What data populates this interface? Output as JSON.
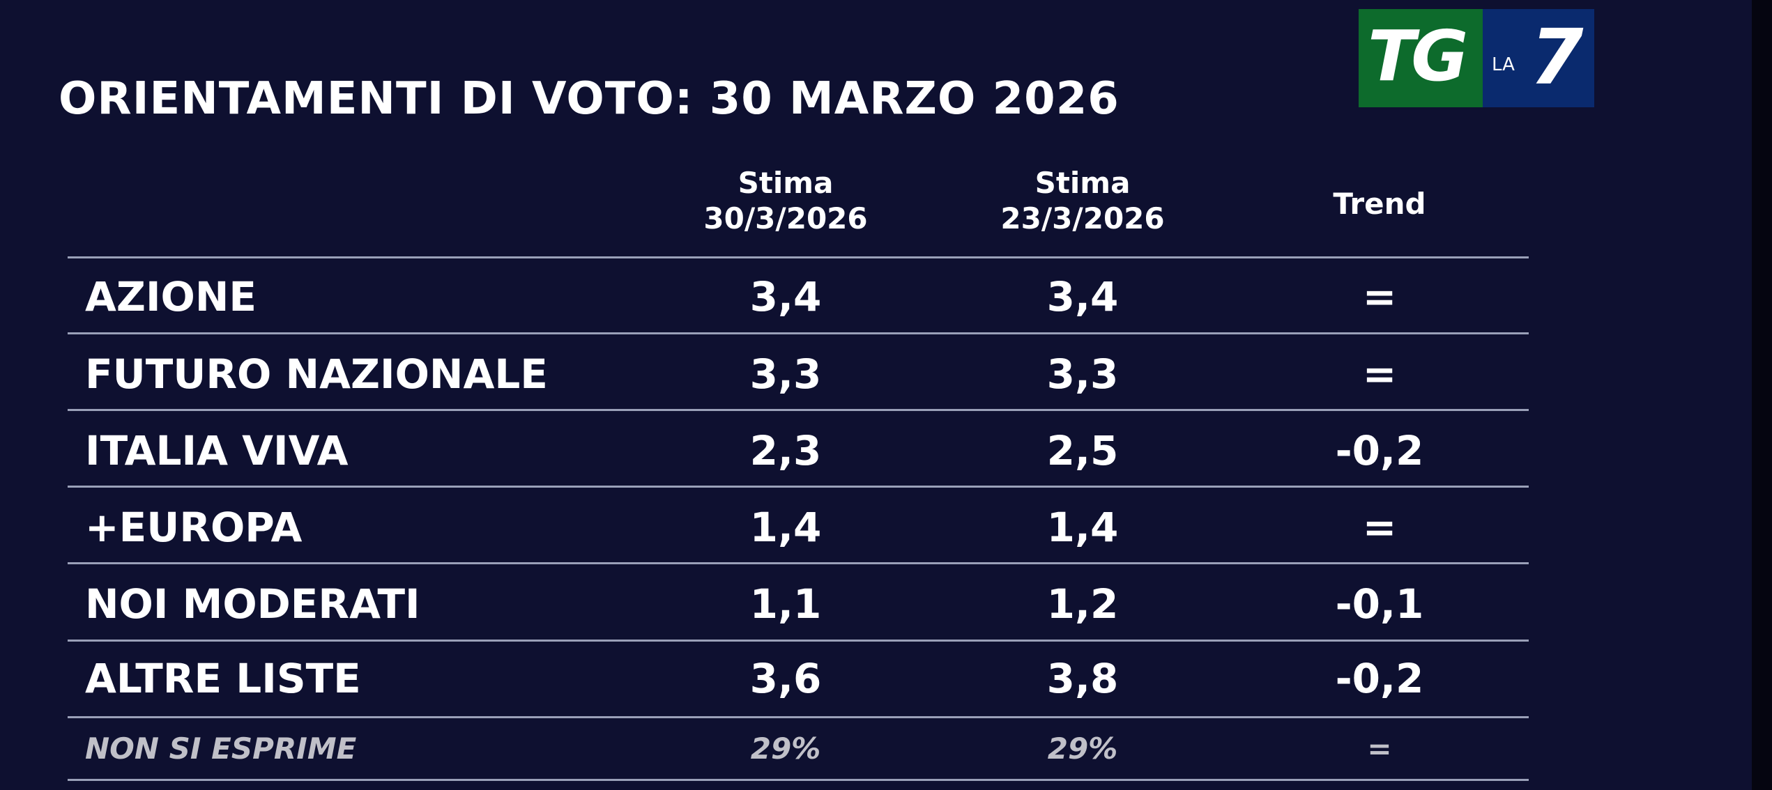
{
  "header": {
    "title": "ORIENTAMENTI DI VOTO: 30 MARZO 2026",
    "logo": {
      "tg": "TG",
      "la": "LA",
      "seven": "7"
    }
  },
  "table": {
    "columns": [
      {
        "line1": "Stima",
        "line2": "30/3/2026"
      },
      {
        "line1": "Stima",
        "line2": "23/3/2026"
      },
      {
        "line1": "Trend"
      }
    ],
    "rows": [
      [
        "AZIONE",
        "3,4",
        "3,4",
        "="
      ],
      [
        "FUTURO NAZIONALE",
        "3,3",
        "3,3",
        "="
      ],
      [
        "ITALIA VIVA",
        "2,3",
        "2,5",
        "-0,2"
      ],
      [
        "+EUROPA",
        "1,4",
        "1,4",
        "="
      ],
      [
        "NOI MODERATI",
        "1,1",
        "1,2",
        "-0,1"
      ],
      [
        "ALTRE LISTE",
        "3,6",
        "3,8",
        "-0,2"
      ],
      [
        "NON SI ESPRIME",
        "29%",
        "29%",
        "="
      ]
    ]
  }
}
